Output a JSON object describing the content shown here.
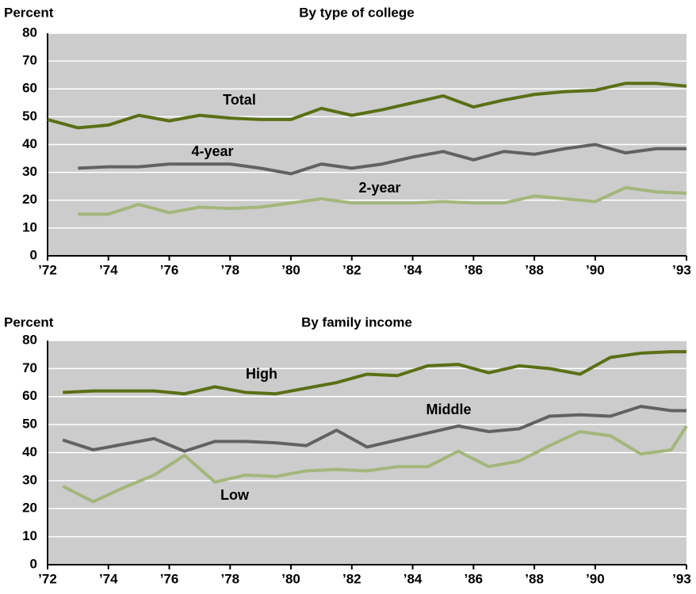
{
  "chart_data": [
    {
      "type": "line",
      "title": "By type of college",
      "ylabel": "Percent",
      "x": [
        1972,
        1973,
        1974,
        1975,
        1976,
        1977,
        1978,
        1979,
        1980,
        1981,
        1982,
        1983,
        1984,
        1985,
        1986,
        1987,
        1988,
        1989,
        1990,
        1991,
        1992,
        1993
      ],
      "series": [
        {
          "name": "Total",
          "color": "#5b6f15",
          "values": [
            49,
            46,
            47,
            50.5,
            48.5,
            50.5,
            49.5,
            49,
            49,
            53,
            50.5,
            52.5,
            55,
            57.5,
            53.5,
            56,
            58,
            59,
            59.5,
            62,
            62,
            61
          ]
        },
        {
          "name": "4-year",
          "color": "#626262",
          "values": [
            null,
            31.5,
            32,
            32,
            33,
            33,
            33,
            31.5,
            29.5,
            33,
            31.5,
            33,
            35.5,
            37.5,
            34.5,
            37.5,
            36.5,
            38.5,
            40,
            37,
            38.5,
            38.5
          ]
        },
        {
          "name": "2-year",
          "color": "#a4b67b",
          "values": [
            null,
            15,
            15,
            18.5,
            15.5,
            17.5,
            17,
            17.5,
            19,
            20.5,
            19,
            19,
            19,
            19.5,
            19,
            19,
            21.5,
            20.5,
            19.5,
            24.5,
            23,
            22.5
          ]
        }
      ],
      "xlim": [
        1972,
        1993
      ],
      "xticks": [
        {
          "value": 1972,
          "label": "’72"
        },
        {
          "value": 1974,
          "label": "’74"
        },
        {
          "value": 1976,
          "label": "’76"
        },
        {
          "value": 1978,
          "label": "’78"
        },
        {
          "value": 1980,
          "label": "’80"
        },
        {
          "value": 1982,
          "label": "’82"
        },
        {
          "value": 1984,
          "label": "’84"
        },
        {
          "value": 1986,
          "label": "’86"
        },
        {
          "value": 1988,
          "label": "’88"
        },
        {
          "value": 1990,
          "label": "’90"
        },
        {
          "value": 1993,
          "label": "’93"
        }
      ],
      "ylim": [
        0,
        80
      ],
      "yticks": [
        0,
        10,
        20,
        30,
        40,
        50,
        60,
        70,
        80
      ],
      "grid": true
    },
    {
      "type": "line",
      "title": "By family income",
      "ylabel": "Percent",
      "x": [
        1972.5,
        1973.5,
        1974.5,
        1975.5,
        1976.5,
        1977.5,
        1978.5,
        1979.5,
        1980.5,
        1981.5,
        1982.5,
        1983.5,
        1984.5,
        1985.5,
        1986.5,
        1987.5,
        1988.5,
        1989.5,
        1990.5,
        1991.5,
        1992.5,
        1993
      ],
      "series": [
        {
          "name": "High",
          "color": "#5b6f15",
          "values": [
            61.5,
            62,
            62,
            62,
            61,
            63.5,
            61.5,
            61,
            63,
            65,
            68,
            67.5,
            71,
            71.5,
            68.5,
            71,
            70,
            68,
            74,
            75.5,
            76,
            76
          ]
        },
        {
          "name": "Middle",
          "color": "#626262",
          "values": [
            44.5,
            41,
            43,
            45,
            40.5,
            44,
            44,
            43.5,
            42.5,
            48,
            42,
            44.5,
            47,
            49.5,
            47.5,
            48.5,
            53,
            53.5,
            53,
            56.5,
            55,
            55
          ]
        },
        {
          "name": "Low",
          "color": "#a4b67b",
          "values": [
            28,
            22.5,
            27.5,
            32,
            39,
            29.5,
            32,
            31.5,
            33.5,
            34,
            33.5,
            35,
            35,
            40.5,
            35,
            37,
            42.5,
            47.5,
            46,
            39.5,
            41,
            49.5
          ]
        }
      ],
      "xlim": [
        1972,
        1993
      ],
      "xticks": [
        {
          "value": 1972,
          "label": "’72"
        },
        {
          "value": 1974,
          "label": "’74"
        },
        {
          "value": 1976,
          "label": "’76"
        },
        {
          "value": 1978,
          "label": "’78"
        },
        {
          "value": 1980,
          "label": "’80"
        },
        {
          "value": 1982,
          "label": "’82"
        },
        {
          "value": 1984,
          "label": "’84"
        },
        {
          "value": 1986,
          "label": "’86"
        },
        {
          "value": 1988,
          "label": "’88"
        },
        {
          "value": 1990,
          "label": "’90"
        },
        {
          "value": 1993,
          "label": "’93"
        }
      ],
      "ylim": [
        0,
        80
      ],
      "yticks": [
        0,
        10,
        20,
        30,
        40,
        50,
        60,
        70,
        80
      ],
      "grid": true
    }
  ]
}
